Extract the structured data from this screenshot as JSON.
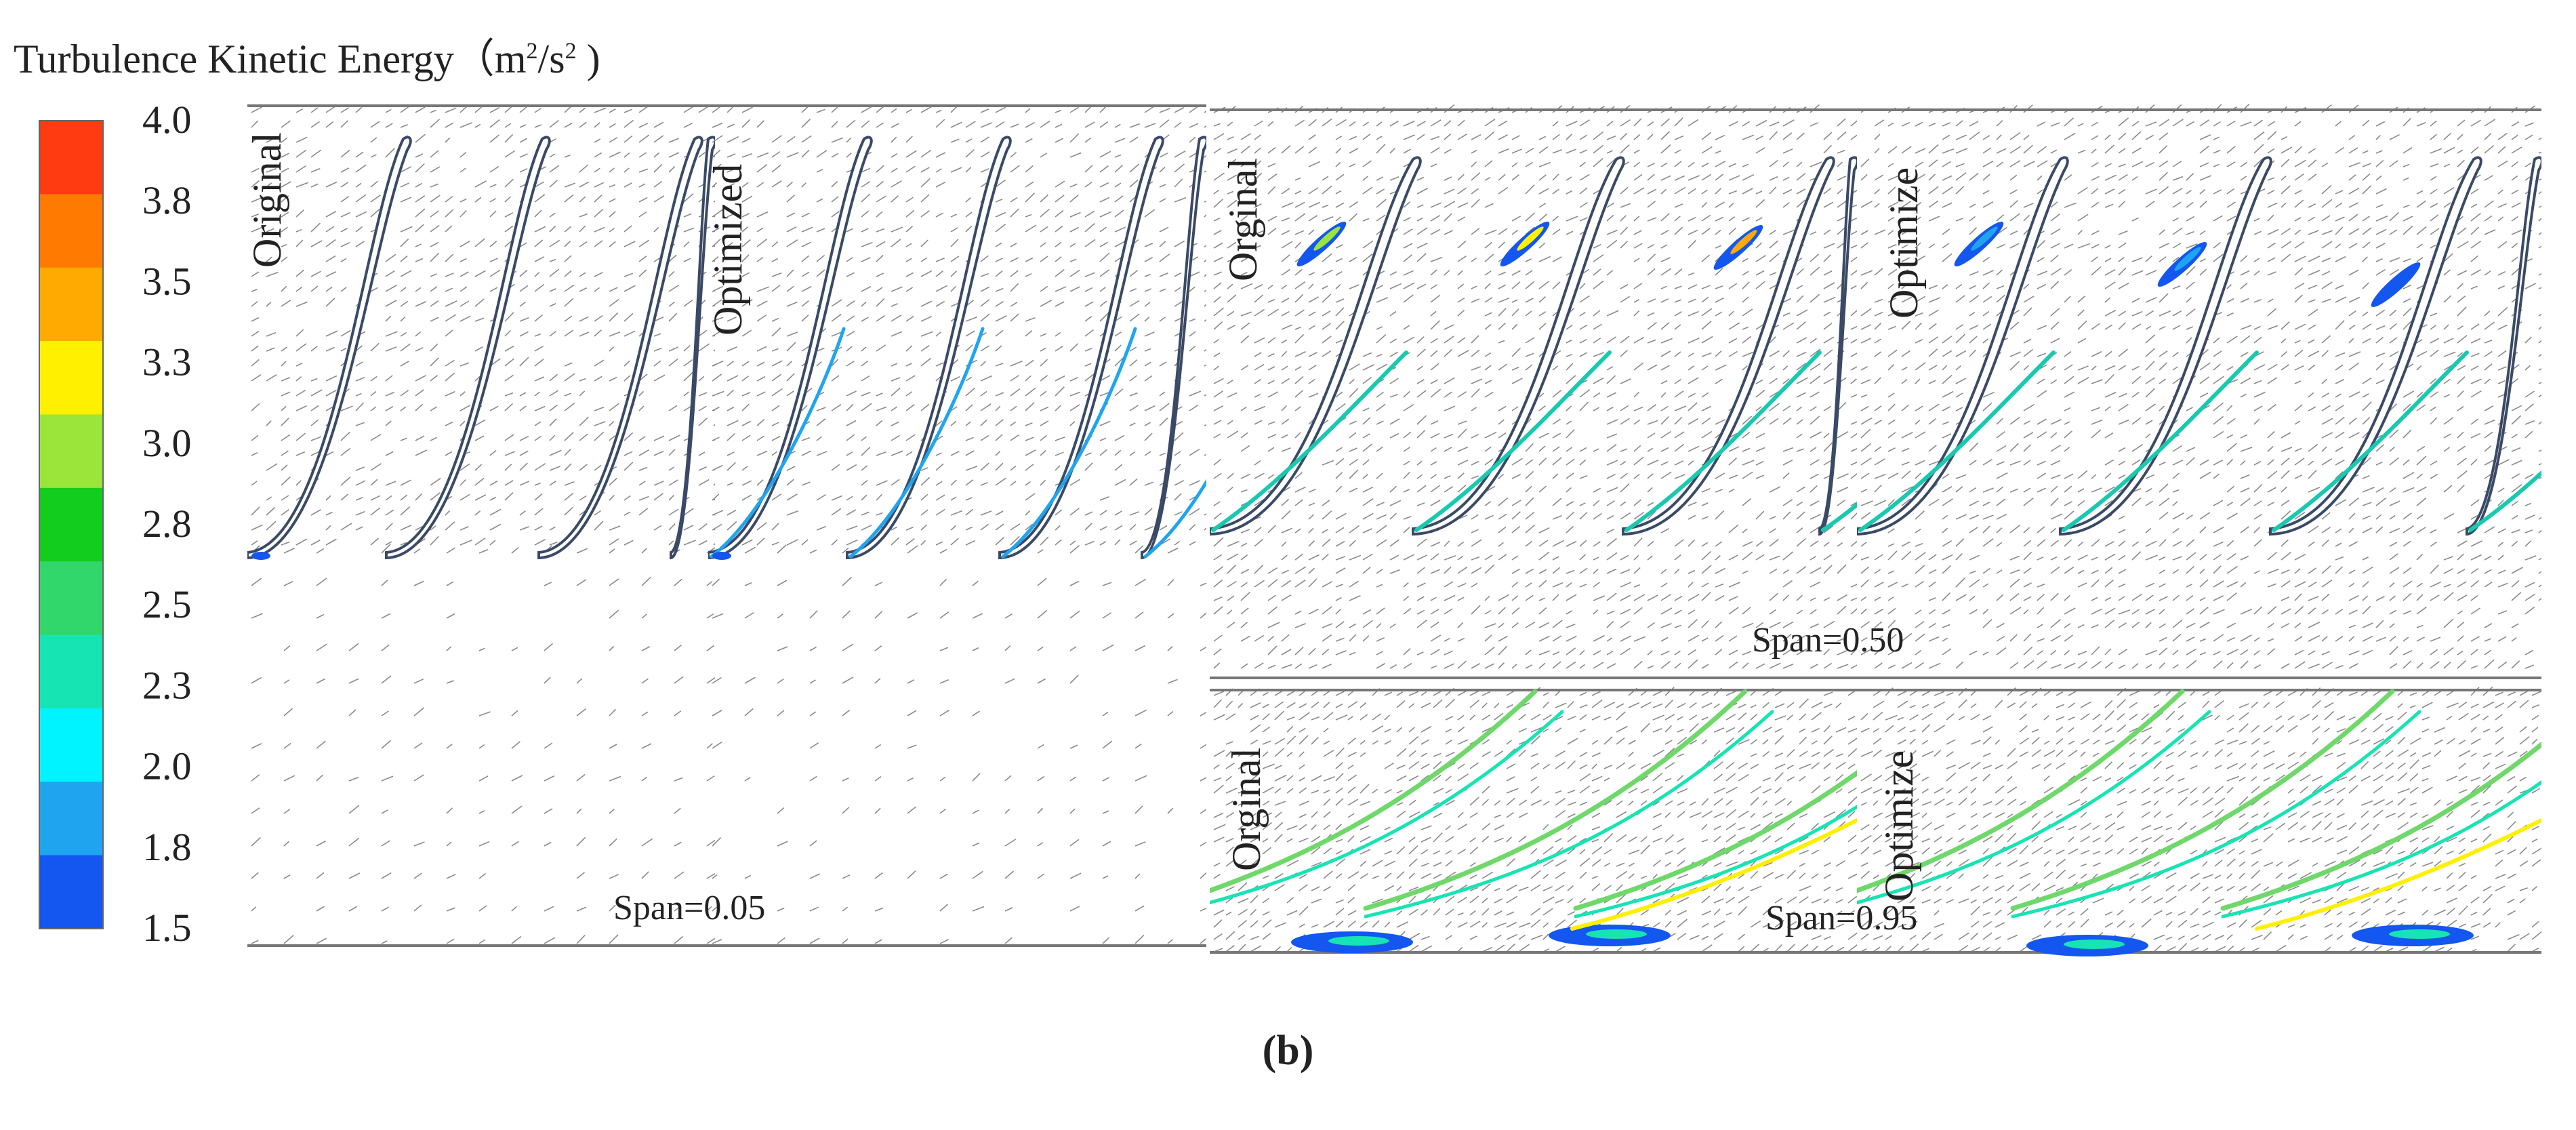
{
  "title": {
    "text": "Turbulence Kinetic Energy（m",
    "sup1": "2",
    "mid": "/s",
    "sup2": "2",
    "end": " )"
  },
  "legend": {
    "ticks": [
      "4.0",
      "3.8",
      "3.5",
      "3.3",
      "3.0",
      "2.8",
      "2.5",
      "2.3",
      "2.0",
      "1.8",
      "1.5"
    ],
    "colors": [
      "#ff3b12",
      "#ff7a00",
      "#ffaa00",
      "#fff000",
      "#9be53b",
      "#12cc1e",
      "#31d76b",
      "#16e4b2",
      "#00f4ff",
      "#1fa5f0",
      "#1356f0"
    ]
  },
  "panels": {
    "span005_original": {
      "label": "Original"
    },
    "span005_optimized": {
      "label": "Optimized",
      "span_text": "Span=0.05"
    },
    "span050_original": {
      "label": "Orginal"
    },
    "span050_optimized": {
      "label": "Optimize",
      "span_text": "Span=0.50"
    },
    "span095_original": {
      "label": "Orginal"
    },
    "span095_optimized": {
      "label": "Optimize",
      "span_text": "Span=0.95"
    }
  },
  "caption": "(b)"
}
